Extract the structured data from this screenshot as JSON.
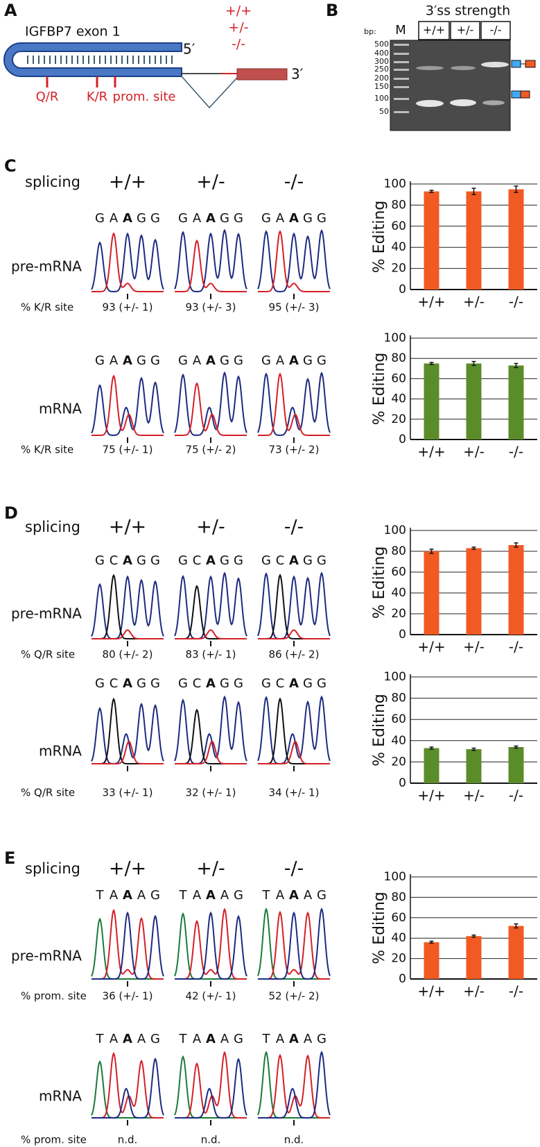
{
  "panel_a": {
    "label": "A",
    "title": "IGFBP7 exon 1",
    "five_prime": "5′",
    "three_prime": "3′",
    "genotypes": [
      "+/+",
      "+/-",
      "-/-"
    ],
    "sites": [
      "Q/R",
      "K/R",
      "prom. site"
    ]
  },
  "panel_b": {
    "label": "B",
    "title": "3′ss strength",
    "bp_label": "bp:",
    "marker": "M",
    "lanes": [
      "+/+",
      "+/-",
      "-/-"
    ],
    "ladder": [
      500,
      400,
      300,
      250,
      200,
      150,
      100,
      50
    ]
  },
  "panels": [
    {
      "label": "C",
      "splicing": "splicing",
      "genotypes": [
        "+/+",
        "+/-",
        "-/-"
      ],
      "rows": [
        {
          "name": "pre-mRNA",
          "bases": [
            "G",
            "A",
            "A",
            "G",
            "G"
          ],
          "highlight": 2,
          "site_label": "% K/R site",
          "results": [
            "93 (+/- 1)",
            "93 (+/- 3)",
            "95 (+/- 3)"
          ]
        },
        {
          "name": "mRNA",
          "bases": [
            "G",
            "A",
            "A",
            "G",
            "G"
          ],
          "highlight": 2,
          "site_label": "% K/R site",
          "results": [
            "75 (+/- 1)",
            "75 (+/- 2)",
            "73 (+/- 2)"
          ]
        }
      ]
    },
    {
      "label": "D",
      "splicing": "splicing",
      "genotypes": [
        "+/+",
        "+/-",
        "-/-"
      ],
      "rows": [
        {
          "name": "pre-mRNA",
          "bases": [
            "G",
            "C",
            "A",
            "G",
            "G"
          ],
          "highlight": 2,
          "site_label": "% Q/R site",
          "results": [
            "80 (+/- 2)",
            "83 (+/- 1)",
            "86 (+/- 2)"
          ]
        },
        {
          "name": "mRNA",
          "bases": [
            "G",
            "C",
            "A",
            "G",
            "G"
          ],
          "highlight": 2,
          "site_label": "%  Q/R site",
          "results": [
            "33 (+/- 1)",
            "32 (+/- 1)",
            "34 (+/- 1)"
          ]
        }
      ]
    },
    {
      "label": "E",
      "splicing": "splicing",
      "genotypes": [
        "+/+",
        "+/-",
        "-/-"
      ],
      "rows": [
        {
          "name": "pre-mRNA",
          "bases": [
            "T",
            "A",
            "A",
            "A",
            "G"
          ],
          "highlight": 2,
          "site_label": "% prom. site",
          "results": [
            "36 (+/- 1)",
            "42 (+/- 1)",
            "52 (+/- 2)"
          ]
        },
        {
          "name": "mRNA",
          "bases": [
            "T",
            "A",
            "A",
            "A",
            "G"
          ],
          "highlight": 2,
          "site_label": "% prom. site",
          "results": [
            "n.d.",
            "n.d.",
            "n.d."
          ]
        }
      ]
    }
  ],
  "chart_data": [
    {
      "type": "bar",
      "ylabel": "% Editing",
      "categories": [
        "+/+",
        "+/-",
        "-/-"
      ],
      "values": [
        93,
        93,
        95
      ],
      "errors": [
        1,
        3,
        3
      ],
      "color": "#f15a22",
      "ylim": [
        0,
        100
      ],
      "yticks": [
        0,
        20,
        40,
        60,
        80,
        100
      ],
      "grid": true
    },
    {
      "type": "bar",
      "ylabel": "% Editing",
      "categories": [
        "+/+",
        "+/-",
        "-/-"
      ],
      "values": [
        75,
        75,
        73
      ],
      "errors": [
        1,
        2,
        2
      ],
      "color": "#5b8c2a",
      "ylim": [
        0,
        100
      ],
      "yticks": [
        0,
        20,
        40,
        60,
        80,
        100
      ],
      "grid": true
    },
    {
      "type": "bar",
      "ylabel": "% Editing",
      "categories": [
        "+/+",
        "+/-",
        "-/-"
      ],
      "values": [
        80,
        83,
        86
      ],
      "errors": [
        2,
        1,
        2
      ],
      "color": "#f15a22",
      "ylim": [
        0,
        100
      ],
      "yticks": [
        0,
        20,
        40,
        60,
        80,
        100
      ],
      "grid": true
    },
    {
      "type": "bar",
      "ylabel": "% Editing",
      "categories": [
        "+/+",
        "+/-",
        "-/-"
      ],
      "values": [
        33,
        32,
        34
      ],
      "errors": [
        1,
        1,
        1
      ],
      "color": "#5b8c2a",
      "ylim": [
        0,
        100
      ],
      "yticks": [
        0,
        20,
        40,
        60,
        80,
        100
      ],
      "grid": true
    },
    {
      "type": "bar",
      "ylabel": "% Editing",
      "categories": [
        "+/+",
        "+/-",
        "-/-"
      ],
      "values": [
        36,
        42,
        52
      ],
      "errors": [
        1,
        1,
        2
      ],
      "color": "#f15a22",
      "ylim": [
        0,
        100
      ],
      "yticks": [
        0,
        20,
        40,
        60,
        80,
        100
      ],
      "grid": true
    }
  ]
}
